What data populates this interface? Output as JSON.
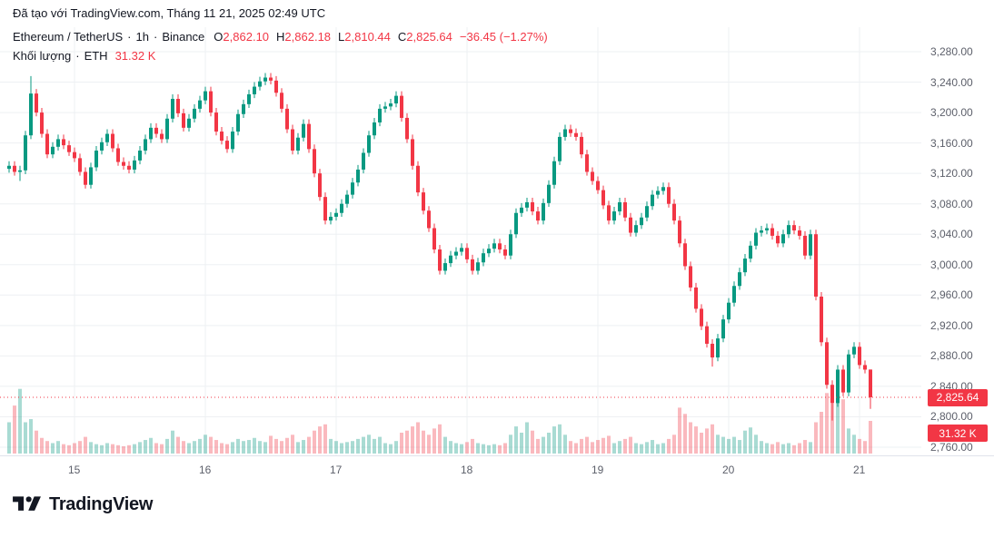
{
  "attribution": {
    "prefix": "Đã tạo với ",
    "link": "TradingView.com",
    "suffix": ", Tháng 11 21, 2025 02:49 UTC"
  },
  "header": {
    "symbol": "Ethereum / TetherUS",
    "dot": "·",
    "interval": "1h",
    "exchange": "Binance",
    "ohlc": {
      "o_label": "O",
      "o": "2,862.10",
      "h_label": "H",
      "h": "2,862.18",
      "l_label": "L",
      "l": "2,810.44",
      "c_label": "C",
      "c": "2,825.64",
      "change": "−36.45 (−1.27%)"
    },
    "volume_label": "Khối lượng",
    "volume_symbol": "ETH",
    "volume_value": "31.32 K"
  },
  "axes": {
    "price_ticks": [
      "3,280.00",
      "3,240.00",
      "3,200.00",
      "3,160.00",
      "3,120.00",
      "3,080.00",
      "3,040.00",
      "3,000.00",
      "2,960.00",
      "2,920.00",
      "2,880.00",
      "2,840.00",
      "2,800.00",
      "2,760.00"
    ],
    "time_ticks": [
      {
        "label": "15",
        "index": 12
      },
      {
        "label": "16",
        "index": 36
      },
      {
        "label": "17",
        "index": 60
      },
      {
        "label": "18",
        "index": 84
      },
      {
        "label": "19",
        "index": 108
      },
      {
        "label": "20",
        "index": 132
      },
      {
        "label": "21",
        "index": 156
      }
    ],
    "last_price_label": "2,825.64",
    "last_volume_label": "31.32 K"
  },
  "colors": {
    "up": "#089981",
    "down": "#f23645",
    "accent_red": "#f23645",
    "grid": "#eef0f3",
    "axis_text": "#5d606b",
    "text": "#131722",
    "volume_up": "rgba(8,153,129,0.35)",
    "volume_down": "rgba(242,54,69,0.35)"
  },
  "logo": {
    "brand": "TradingView"
  },
  "chart_data": {
    "type": "candlestick",
    "title": "Ethereum / TetherUS",
    "interval": "1h",
    "exchange": "Binance",
    "price_axis_range": [
      2760,
      3280
    ],
    "price_tick_step": 40,
    "time_axis_labels": [
      "15",
      "16",
      "17",
      "18",
      "19",
      "20",
      "21"
    ],
    "last_price": 2825.64,
    "last_ohlc": {
      "open": 2862.1,
      "high": 2862.18,
      "low": 2810.44,
      "close": 2825.64,
      "change": -36.45,
      "change_pct": -1.27
    },
    "last_volume_k": 31.32,
    "candles": [
      [
        3126,
        3136,
        3121,
        3130
      ],
      [
        3130,
        3136,
        3117,
        3122
      ],
      [
        3122,
        3130,
        3110,
        3124
      ],
      [
        3124,
        3176,
        3119,
        3170
      ],
      [
        3170,
        3248,
        3165,
        3225
      ],
      [
        3225,
        3231,
        3195,
        3200
      ],
      [
        3200,
        3206,
        3167,
        3172
      ],
      [
        3172,
        3178,
        3140,
        3145
      ],
      [
        3145,
        3161,
        3140,
        3155
      ],
      [
        3155,
        3171,
        3150,
        3165
      ],
      [
        3165,
        3171,
        3152,
        3157
      ],
      [
        3157,
        3163,
        3143,
        3148
      ],
      [
        3148,
        3154,
        3135,
        3140
      ],
      [
        3140,
        3146,
        3117,
        3122
      ],
      [
        3122,
        3128,
        3100,
        3105
      ],
      [
        3105,
        3134,
        3100,
        3128
      ],
      [
        3128,
        3156,
        3123,
        3150
      ],
      [
        3150,
        3167,
        3145,
        3161
      ],
      [
        3161,
        3178,
        3156,
        3172
      ],
      [
        3172,
        3178,
        3148,
        3153
      ],
      [
        3153,
        3159,
        3130,
        3135
      ],
      [
        3135,
        3141,
        3125,
        3130
      ],
      [
        3130,
        3136,
        3120,
        3125
      ],
      [
        3125,
        3143,
        3120,
        3137
      ],
      [
        3137,
        3156,
        3132,
        3150
      ],
      [
        3150,
        3171,
        3145,
        3165
      ],
      [
        3165,
        3186,
        3160,
        3180
      ],
      [
        3180,
        3186,
        3167,
        3172
      ],
      [
        3172,
        3178,
        3160,
        3165
      ],
      [
        3165,
        3198,
        3160,
        3192
      ],
      [
        3192,
        3224,
        3187,
        3218
      ],
      [
        3218,
        3224,
        3194,
        3199
      ],
      [
        3199,
        3205,
        3175,
        3180
      ],
      [
        3180,
        3198,
        3175,
        3192
      ],
      [
        3192,
        3211,
        3187,
        3205
      ],
      [
        3205,
        3222,
        3200,
        3216
      ],
      [
        3216,
        3234,
        3211,
        3228
      ],
      [
        3228,
        3234,
        3195,
        3200
      ],
      [
        3200,
        3206,
        3170,
        3175
      ],
      [
        3175,
        3181,
        3158,
        3163
      ],
      [
        3163,
        3169,
        3147,
        3152
      ],
      [
        3152,
        3181,
        3147,
        3175
      ],
      [
        3175,
        3204,
        3170,
        3198
      ],
      [
        3198,
        3217,
        3193,
        3211
      ],
      [
        3211,
        3230,
        3206,
        3224
      ],
      [
        3224,
        3240,
        3219,
        3234
      ],
      [
        3234,
        3247,
        3229,
        3241
      ],
      [
        3241,
        3252,
        3236,
        3246
      ],
      [
        3246,
        3252,
        3237,
        3242
      ],
      [
        3242,
        3248,
        3221,
        3226
      ],
      [
        3226,
        3232,
        3200,
        3205
      ],
      [
        3205,
        3211,
        3173,
        3178
      ],
      [
        3178,
        3184,
        3145,
        3150
      ],
      [
        3150,
        3173,
        3145,
        3167
      ],
      [
        3167,
        3191,
        3162,
        3185
      ],
      [
        3185,
        3191,
        3147,
        3152
      ],
      [
        3152,
        3158,
        3115,
        3120
      ],
      [
        3120,
        3126,
        3084,
        3089
      ],
      [
        3089,
        3095,
        3053,
        3058
      ],
      [
        3058,
        3069,
        3053,
        3063
      ],
      [
        3063,
        3074,
        3058,
        3068
      ],
      [
        3068,
        3086,
        3063,
        3080
      ],
      [
        3080,
        3098,
        3075,
        3092
      ],
      [
        3092,
        3114,
        3087,
        3108
      ],
      [
        3108,
        3131,
        3103,
        3125
      ],
      [
        3125,
        3153,
        3120,
        3147
      ],
      [
        3147,
        3176,
        3142,
        3170
      ],
      [
        3170,
        3193,
        3165,
        3187
      ],
      [
        3187,
        3211,
        3182,
        3205
      ],
      [
        3205,
        3214,
        3200,
        3208
      ],
      [
        3208,
        3218,
        3203,
        3212
      ],
      [
        3212,
        3228,
        3207,
        3222
      ],
      [
        3222,
        3228,
        3188,
        3193
      ],
      [
        3193,
        3199,
        3160,
        3165
      ],
      [
        3165,
        3171,
        3125,
        3130
      ],
      [
        3130,
        3136,
        3090,
        3095
      ],
      [
        3095,
        3101,
        3066,
        3071
      ],
      [
        3071,
        3077,
        3043,
        3048
      ],
      [
        3048,
        3054,
        3015,
        3020
      ],
      [
        3020,
        3026,
        2987,
        2992
      ],
      [
        2992,
        3008,
        2987,
        3002
      ],
      [
        3002,
        3018,
        2997,
        3012
      ],
      [
        3012,
        3023,
        3007,
        3017
      ],
      [
        3017,
        3028,
        3012,
        3022
      ],
      [
        3022,
        3028,
        3002,
        3007
      ],
      [
        3007,
        3013,
        2987,
        2992
      ],
      [
        2992,
        3009,
        2987,
        3003
      ],
      [
        3003,
        3021,
        2998,
        3015
      ],
      [
        3015,
        3027,
        3010,
        3021
      ],
      [
        3021,
        3034,
        3016,
        3028
      ],
      [
        3028,
        3034,
        3015,
        3020
      ],
      [
        3020,
        3026,
        3007,
        3012
      ],
      [
        3012,
        3046,
        3007,
        3040
      ],
      [
        3040,
        3074,
        3035,
        3068
      ],
      [
        3068,
        3081,
        3063,
        3075
      ],
      [
        3075,
        3088,
        3070,
        3082
      ],
      [
        3082,
        3088,
        3065,
        3070
      ],
      [
        3070,
        3076,
        3053,
        3058
      ],
      [
        3058,
        3087,
        3053,
        3081
      ],
      [
        3081,
        3111,
        3076,
        3105
      ],
      [
        3105,
        3142,
        3100,
        3136
      ],
      [
        3136,
        3174,
        3131,
        3168
      ],
      [
        3168,
        3184,
        3163,
        3178
      ],
      [
        3178,
        3184,
        3168,
        3173
      ],
      [
        3173,
        3179,
        3163,
        3168
      ],
      [
        3168,
        3174,
        3140,
        3145
      ],
      [
        3145,
        3151,
        3117,
        3122
      ],
      [
        3122,
        3128,
        3105,
        3110
      ],
      [
        3110,
        3116,
        3093,
        3098
      ],
      [
        3098,
        3104,
        3073,
        3078
      ],
      [
        3078,
        3084,
        3053,
        3058
      ],
      [
        3058,
        3076,
        3053,
        3070
      ],
      [
        3070,
        3088,
        3065,
        3082
      ],
      [
        3082,
        3088,
        3057,
        3062
      ],
      [
        3062,
        3068,
        3037,
        3042
      ],
      [
        3042,
        3058,
        3037,
        3052
      ],
      [
        3052,
        3068,
        3047,
        3062
      ],
      [
        3062,
        3083,
        3057,
        3077
      ],
      [
        3077,
        3098,
        3072,
        3092
      ],
      [
        3092,
        3103,
        3087,
        3097
      ],
      [
        3097,
        3108,
        3092,
        3102
      ],
      [
        3102,
        3108,
        3075,
        3080
      ],
      [
        3080,
        3086,
        3053,
        3058
      ],
      [
        3058,
        3064,
        3023,
        3028
      ],
      [
        3028,
        3034,
        2993,
        2998
      ],
      [
        2998,
        3004,
        2965,
        2970
      ],
      [
        2970,
        2976,
        2937,
        2942
      ],
      [
        2942,
        2948,
        2914,
        2919
      ],
      [
        2919,
        2925,
        2891,
        2896
      ],
      [
        2896,
        2902,
        2866,
        2878
      ],
      [
        2878,
        2909,
        2873,
        2903
      ],
      [
        2903,
        2934,
        2898,
        2928
      ],
      [
        2928,
        2956,
        2923,
        2950
      ],
      [
        2950,
        2978,
        2945,
        2972
      ],
      [
        2972,
        2996,
        2967,
        2990
      ],
      [
        2990,
        3014,
        2985,
        3008
      ],
      [
        3008,
        3031,
        3003,
        3025
      ],
      [
        3025,
        3048,
        3020,
        3042
      ],
      [
        3042,
        3051,
        3037,
        3045
      ],
      [
        3045,
        3054,
        3040,
        3048
      ],
      [
        3048,
        3054,
        3033,
        3038
      ],
      [
        3038,
        3044,
        3023,
        3028
      ],
      [
        3028,
        3046,
        3023,
        3040
      ],
      [
        3040,
        3058,
        3035,
        3052
      ],
      [
        3052,
        3058,
        3040,
        3045
      ],
      [
        3045,
        3051,
        3033,
        3038
      ],
      [
        3038,
        3044,
        3007,
        3012
      ],
      [
        3012,
        3046,
        3007,
        3040
      ],
      [
        3040,
        3046,
        2953,
        2958
      ],
      [
        2958,
        2964,
        2893,
        2898
      ],
      [
        2898,
        2904,
        2837,
        2842
      ],
      [
        2842,
        2848,
        2795,
        2818
      ],
      [
        2818,
        2868,
        2813,
        2862
      ],
      [
        2862,
        2868,
        2827,
        2832
      ],
      [
        2832,
        2888,
        2827,
        2882
      ],
      [
        2882,
        2898,
        2877,
        2892
      ],
      [
        2892,
        2898,
        2863,
        2868
      ],
      [
        2868,
        2874,
        2857,
        2862
      ],
      [
        2862.1,
        2862.18,
        2810.44,
        2825.64
      ]
    ],
    "volumes_k": [
      30,
      46,
      62,
      30,
      33,
      22,
      15,
      12,
      10,
      12,
      9,
      8,
      10,
      12,
      16,
      11,
      9,
      8,
      10,
      9,
      8,
      7,
      8,
      9,
      11,
      13,
      15,
      10,
      9,
      14,
      22,
      16,
      12,
      10,
      12,
      14,
      18,
      16,
      13,
      10,
      9,
      11,
      14,
      12,
      13,
      15,
      12,
      11,
      17,
      14,
      12,
      15,
      18,
      11,
      13,
      16,
      22,
      26,
      28,
      14,
      12,
      10,
      11,
      12,
      14,
      16,
      18,
      14,
      16,
      10,
      9,
      12,
      20,
      22,
      26,
      30,
      22,
      18,
      24,
      28,
      16,
      12,
      10,
      9,
      11,
      14,
      10,
      9,
      8,
      9,
      8,
      10,
      18,
      26,
      20,
      30,
      22,
      14,
      16,
      20,
      26,
      28,
      18,
      12,
      10,
      14,
      16,
      11,
      13,
      15,
      17,
      10,
      12,
      14,
      16,
      10,
      9,
      11,
      13,
      9,
      10,
      14,
      18,
      44,
      38,
      30,
      26,
      20,
      24,
      28,
      18,
      16,
      14,
      16,
      13,
      22,
      25,
      18,
      12,
      10,
      9,
      11,
      9,
      10,
      8,
      10,
      13,
      11,
      30,
      40,
      58,
      48,
      65,
      52,
      24,
      18,
      14,
      12,
      31.32
    ]
  }
}
